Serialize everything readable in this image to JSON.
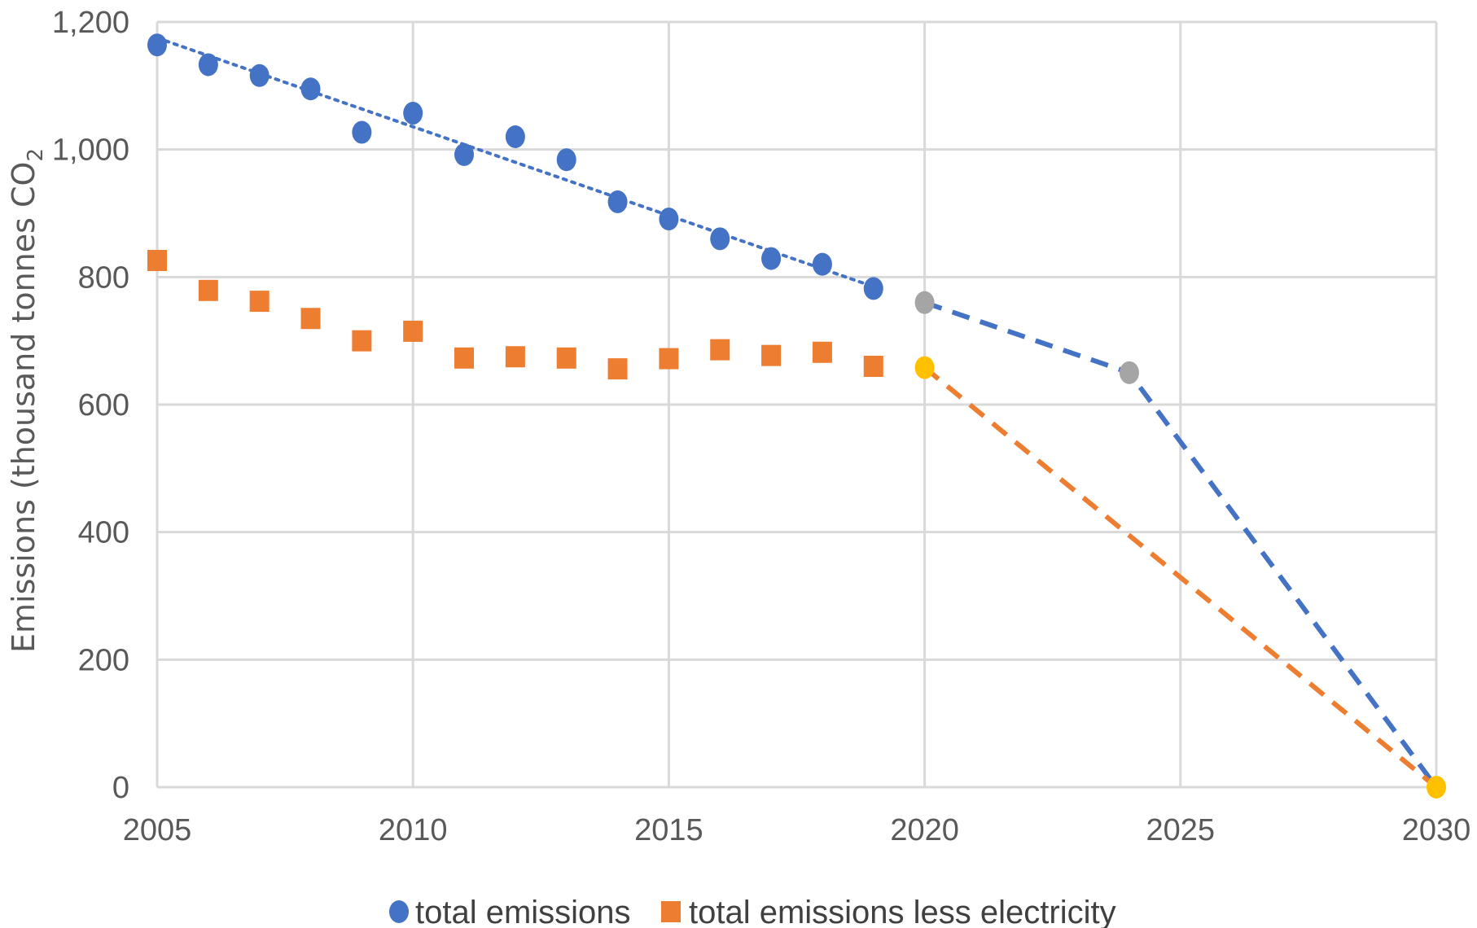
{
  "chart_data": {
    "type": "scatter",
    "title": "",
    "xlabel": "",
    "ylabel": "Emissions (thousand tonnes CO",
    "ylabel_subscript": "2",
    "xlim": [
      2005,
      2030
    ],
    "ylim": [
      0,
      1200
    ],
    "x_ticks": [
      2005,
      2010,
      2015,
      2020,
      2025,
      2030
    ],
    "x_tick_labels": [
      "2005",
      "2010",
      "2015",
      "2020",
      "2025",
      "2030"
    ],
    "y_ticks": [
      0,
      200,
      400,
      600,
      800,
      1000,
      1200
    ],
    "y_tick_labels": [
      "0",
      "200",
      "400",
      "600",
      "800",
      "1,000",
      "1,200"
    ],
    "grid": true,
    "legend_position": "bottom",
    "series": [
      {
        "name": "total emissions",
        "marker": "circle",
        "color": "#4472C4",
        "x": [
          2005,
          2006,
          2007,
          2008,
          2009,
          2010,
          2011,
          2012,
          2013,
          2014,
          2015,
          2016,
          2017,
          2018,
          2019
        ],
        "y": [
          1164,
          1133,
          1116,
          1095,
          1027,
          1057,
          992,
          1020,
          984,
          918,
          891,
          860,
          829,
          820,
          782
        ]
      },
      {
        "name": "total emissions less electricity",
        "marker": "square",
        "color": "#ED7D31",
        "x": [
          2005,
          2006,
          2007,
          2008,
          2009,
          2010,
          2011,
          2012,
          2013,
          2014,
          2015,
          2016,
          2017,
          2018,
          2019
        ],
        "y": [
          826,
          779,
          762,
          735,
          700,
          715,
          673,
          675,
          673,
          656,
          672,
          686,
          677,
          682,
          660
        ]
      }
    ],
    "trend_line": {
      "style": "dotted",
      "color": "#4472C4",
      "x": [
        2005,
        2019
      ],
      "y": [
        1175,
        785
      ]
    },
    "projections": [
      {
        "style": "dashed",
        "color": "#4472C4",
        "x": [
          2020,
          2024,
          2030
        ],
        "y": [
          760,
          650,
          0
        ],
        "points": [
          {
            "x": 2020,
            "y": 760,
            "color": "#A5A5A5"
          },
          {
            "x": 2024,
            "y": 650,
            "color": "#A5A5A5"
          }
        ]
      },
      {
        "style": "dashed",
        "color": "#ED7D31",
        "x": [
          2020,
          2030
        ],
        "y": [
          658,
          0
        ],
        "points": [
          {
            "x": 2020,
            "y": 658,
            "color": "#FFC000"
          },
          {
            "x": 2030,
            "y": 0,
            "color": "#FFC000"
          }
        ]
      }
    ]
  },
  "colors": {
    "grid": "#D9D9D9",
    "axis": "#D9D9D9",
    "text": "#595959"
  }
}
